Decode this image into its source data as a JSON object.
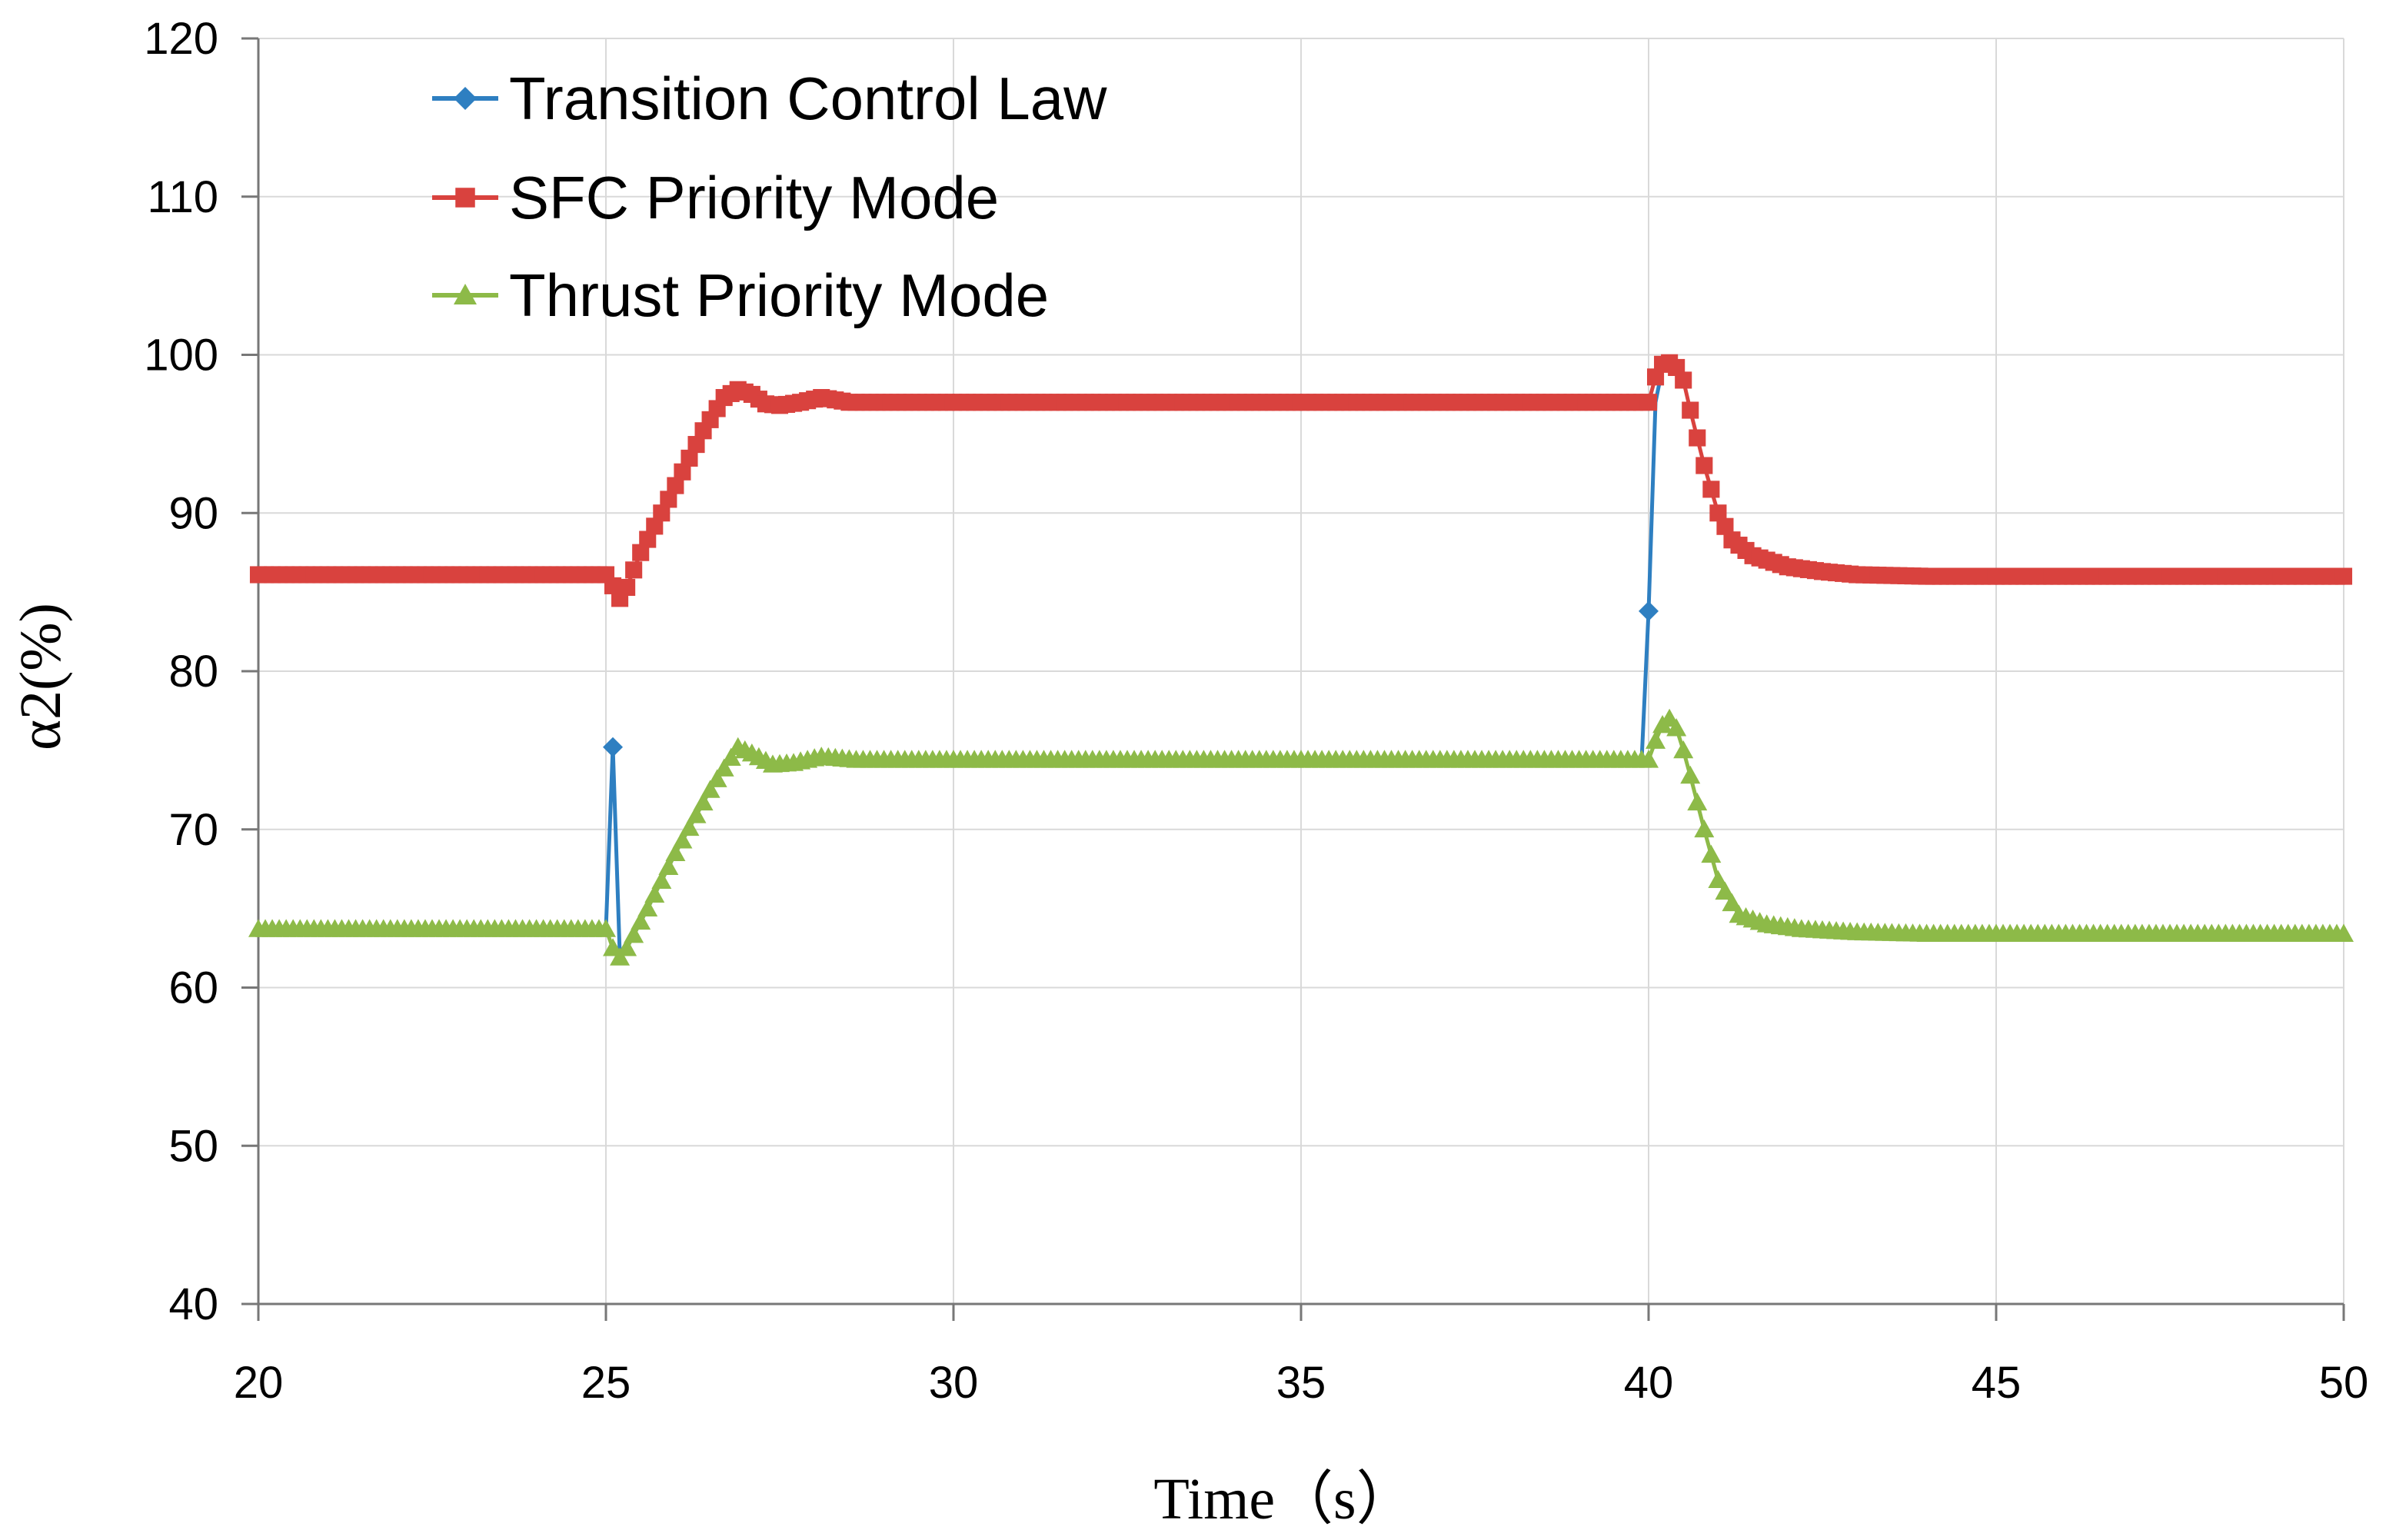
{
  "chart_data": {
    "type": "line",
    "xlabel": "Time（s）",
    "ylabel": "α2(%)",
    "xlim": [
      20,
      50
    ],
    "ylim": [
      40,
      120
    ],
    "xticks": [
      20,
      25,
      30,
      35,
      40,
      45,
      50
    ],
    "yticks": [
      40,
      50,
      60,
      70,
      80,
      90,
      100,
      110,
      120
    ],
    "grid": true,
    "legend_position": "top-left",
    "series": [
      {
        "name": "Transition Control Law",
        "color": "#2E7FC1",
        "marker": "diamond",
        "x": [
          20,
          25.0,
          25.1,
          25.2,
          25.3,
          25.6,
          26.0,
          26.5,
          26.9,
          27.1,
          27.4,
          27.7,
          28.1,
          28.6,
          29.0,
          30,
          35,
          39.9,
          40.0,
          40.1,
          40.2
        ],
        "y": [
          63.7,
          63.7,
          75.2,
          62.0,
          62.5,
          65.0,
          68.5,
          72.5,
          75.2,
          74.8,
          74.1,
          74.2,
          74.6,
          74.4,
          74.4,
          74.4,
          74.4,
          74.4,
          83.8,
          97.0,
          99.2
        ]
      },
      {
        "name": "SFC Priority Mode",
        "color": "#D9423E",
        "marker": "square",
        "x": [
          20,
          25.0,
          25.1,
          25.2,
          25.3,
          25.5,
          25.8,
          26.1,
          26.4,
          26.7,
          26.9,
          27.1,
          27.3,
          27.5,
          27.8,
          28.1,
          28.5,
          29.0,
          30,
          35,
          40.0,
          40.1,
          40.2,
          40.3,
          40.4,
          40.5,
          40.6,
          40.8,
          41.0,
          41.2,
          41.5,
          42.0,
          42.5,
          43.0,
          44.0,
          45,
          50
        ],
        "y": [
          86.1,
          86.1,
          85.4,
          84.6,
          85.3,
          87.5,
          90.0,
          92.6,
          95.2,
          97.3,
          97.8,
          97.5,
          96.9,
          96.8,
          97.0,
          97.3,
          97.0,
          97.0,
          97.0,
          97.0,
          97.0,
          98.6,
          99.4,
          99.5,
          99.2,
          98.4,
          96.5,
          93.0,
          90.0,
          88.3,
          87.3,
          86.6,
          86.3,
          86.1,
          86.0,
          86.0,
          86.0
        ]
      },
      {
        "name": "Thrust Priority Mode",
        "color": "#8DBA48",
        "marker": "triangle",
        "x": [
          20,
          25.0,
          25.1,
          25.2,
          25.3,
          25.6,
          26.0,
          26.5,
          26.9,
          27.1,
          27.4,
          27.7,
          28.1,
          28.6,
          29.0,
          30,
          35,
          40.0,
          40.1,
          40.2,
          40.3,
          40.4,
          40.5,
          40.6,
          40.8,
          41.0,
          41.3,
          41.7,
          42.2,
          43.0,
          44.0,
          45,
          50
        ],
        "y": [
          63.7,
          63.7,
          62.5,
          61.9,
          62.5,
          65.0,
          68.5,
          72.5,
          75.2,
          74.8,
          74.1,
          74.2,
          74.6,
          74.4,
          74.4,
          74.4,
          74.4,
          74.4,
          75.6,
          76.6,
          77.0,
          76.4,
          75.0,
          73.4,
          70.0,
          66.8,
          64.6,
          64.0,
          63.7,
          63.5,
          63.4,
          63.4,
          63.4
        ]
      }
    ]
  }
}
